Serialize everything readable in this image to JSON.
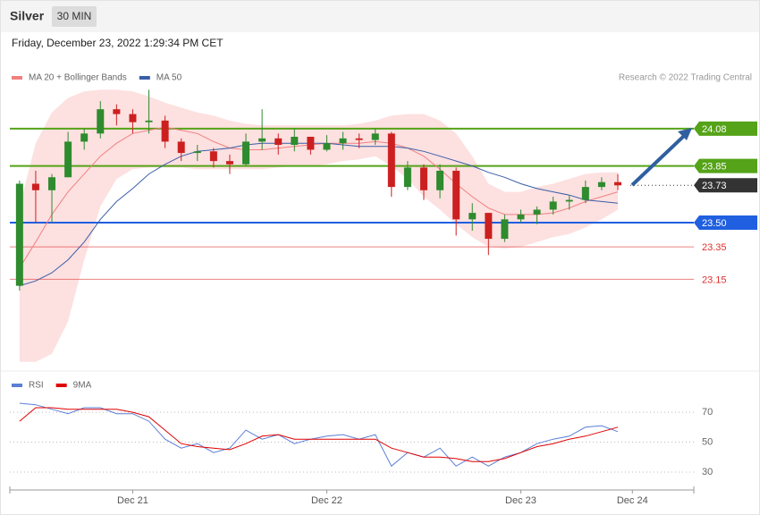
{
  "header": {
    "title": "Silver",
    "timeframe": "30 MIN",
    "date": "Friday, December 23, 2022 1:29:34 PM CET"
  },
  "credit": "Research © 2022 Trading Central",
  "chart_data": [
    {
      "type": "candlestick",
      "x": [
        5,
        6,
        7,
        8,
        9,
        10,
        11,
        12,
        13,
        14,
        15,
        16,
        17,
        18,
        19,
        20,
        21,
        22,
        23,
        24,
        25,
        26,
        27,
        28,
        29,
        30,
        31,
        32,
        33,
        34,
        35,
        36,
        37,
        38,
        39,
        40,
        41,
        42
      ],
      "open": [
        23.11,
        23.74,
        23.7,
        23.78,
        24.0,
        24.05,
        24.2,
        24.17,
        24.12,
        24.13,
        24.0,
        23.93,
        23.94,
        23.88,
        23.86,
        24.0,
        24.02,
        23.98,
        24.03,
        23.95,
        23.99,
        24.02,
        24.01,
        24.05,
        23.72,
        23.84,
        23.7,
        23.82,
        23.52,
        23.56,
        23.4,
        23.52,
        23.55,
        23.58,
        23.63,
        23.64,
        23.72,
        23.75
      ],
      "high": [
        23.76,
        23.82,
        23.8,
        24.06,
        24.08,
        24.25,
        24.23,
        24.2,
        24.32,
        24.16,
        24.02,
        23.98,
        23.96,
        23.92,
        24.05,
        24.2,
        24.05,
        24.08,
        24.03,
        24.04,
        24.06,
        24.05,
        24.08,
        24.06,
        23.88,
        23.86,
        23.86,
        23.84,
        23.62,
        23.56,
        23.55,
        23.58,
        23.6,
        23.66,
        23.67,
        23.76,
        23.78,
        23.8
      ],
      "low": [
        23.08,
        23.5,
        23.5,
        23.78,
        23.95,
        24.02,
        24.1,
        24.05,
        24.05,
        23.96,
        23.88,
        23.88,
        23.84,
        23.8,
        23.85,
        23.95,
        23.92,
        23.94,
        23.92,
        23.94,
        23.95,
        23.96,
        23.98,
        23.66,
        23.7,
        23.64,
        23.65,
        23.42,
        23.45,
        23.3,
        23.38,
        23.5,
        23.49,
        23.55,
        23.58,
        23.62,
        23.7,
        23.7
      ],
      "close": [
        23.74,
        23.7,
        23.78,
        24.0,
        24.05,
        24.2,
        24.17,
        24.12,
        24.13,
        24.0,
        23.93,
        23.94,
        23.88,
        23.86,
        24.0,
        24.02,
        23.98,
        24.03,
        23.95,
        23.99,
        24.02,
        24.01,
        24.05,
        23.72,
        23.84,
        23.7,
        23.82,
        23.52,
        23.56,
        23.4,
        23.52,
        23.55,
        23.58,
        23.63,
        23.64,
        23.72,
        23.75,
        23.73
      ],
      "up_color": "#2e8b2e",
      "down_color": "#cc2020",
      "series": [
        {
          "name": "MA 20 + Bollinger Bands",
          "color": "#f08080",
          "band_color": "#fde0e0",
          "values": [
            23.22,
            23.38,
            23.55,
            23.69,
            23.8,
            23.91,
            23.99,
            24.05,
            24.07,
            24.09,
            24.07,
            24.05,
            24.0,
            23.96,
            23.95,
            23.95,
            23.96,
            23.97,
            23.98,
            23.99,
            23.99,
            23.99,
            24.0,
            23.99,
            23.96,
            23.91,
            23.83,
            23.74,
            23.66,
            23.59,
            23.55,
            23.55,
            23.55,
            23.56,
            23.59,
            23.63,
            23.66,
            23.69
          ],
          "upper": [
            23.6,
            23.99,
            24.18,
            24.27,
            24.31,
            24.32,
            24.32,
            24.31,
            24.28,
            24.24,
            24.21,
            24.18,
            24.16,
            24.13,
            24.11,
            24.1,
            24.1,
            24.1,
            24.1,
            24.1,
            24.1,
            24.11,
            24.13,
            24.16,
            24.17,
            24.17,
            24.13,
            24.05,
            23.91,
            23.74,
            23.69,
            23.69,
            23.72,
            23.74,
            23.77,
            23.8,
            23.81,
            23.81
          ],
          "lower": [
            22.64,
            22.64,
            22.69,
            22.89,
            23.27,
            23.6,
            23.77,
            23.83,
            23.84,
            23.84,
            23.84,
            23.83,
            23.83,
            23.83,
            23.83,
            23.83,
            23.84,
            23.85,
            23.85,
            23.86,
            23.88,
            23.89,
            23.91,
            23.85,
            23.77,
            23.66,
            23.58,
            23.49,
            23.41,
            23.35,
            23.34,
            23.35,
            23.38,
            23.41,
            23.43,
            23.47,
            23.52,
            23.58
          ]
        },
        {
          "name": "MA 50",
          "color": "#3a5ea8",
          "values": [
            23.11,
            23.14,
            23.19,
            23.27,
            23.38,
            23.52,
            23.63,
            23.71,
            23.8,
            23.86,
            23.91,
            23.94,
            23.95,
            23.96,
            23.98,
            23.99,
            23.99,
            23.99,
            23.99,
            23.99,
            23.98,
            23.97,
            23.97,
            23.97,
            23.96,
            23.94,
            23.91,
            23.88,
            23.85,
            23.81,
            23.78,
            23.74,
            23.71,
            23.69,
            23.67,
            23.64,
            23.63,
            23.62
          ]
        }
      ],
      "levels": [
        {
          "value": 24.08,
          "color": "#55a318",
          "tag": true
        },
        {
          "value": 23.85,
          "color": "#55a318",
          "tag": true
        },
        {
          "value": 23.73,
          "color": "#333333",
          "tag": true,
          "dotted": true
        },
        {
          "value": 23.5,
          "label": "23.50",
          "color": "#1f5fe0",
          "tag": true
        },
        {
          "value": 23.35,
          "color": "#e03030",
          "tag": false
        },
        {
          "value": 23.15,
          "color": "#e03030",
          "tag": false
        }
      ],
      "xlim": [
        4.4,
        46.7
      ],
      "ylim": [
        22.6,
        24.35
      ]
    },
    {
      "type": "line",
      "x": [
        5,
        6,
        7,
        8,
        9,
        10,
        11,
        12,
        13,
        14,
        15,
        16,
        17,
        18,
        19,
        20,
        21,
        22,
        23,
        24,
        25,
        26,
        27,
        28,
        29,
        30,
        31,
        32,
        33,
        34,
        35,
        36,
        37,
        38,
        39,
        40,
        41,
        42
      ],
      "series": [
        {
          "name": "RSI",
          "color": "#5b7fd6",
          "values": [
            76,
            75,
            72,
            69,
            73,
            73,
            69,
            69,
            64,
            52,
            46,
            49,
            43,
            46,
            58,
            52,
            55,
            49,
            52,
            54,
            55,
            52,
            55,
            34,
            43,
            40,
            46,
            34,
            40,
            34,
            40,
            43,
            49,
            52,
            54,
            60,
            61,
            57
          ]
        },
        {
          "name": "9MA",
          "color": "#e00000",
          "values": [
            64,
            73,
            73,
            72,
            72,
            72,
            72,
            70,
            67,
            58,
            49,
            47,
            46,
            45,
            49,
            54,
            55,
            52,
            52,
            52,
            52,
            52,
            52,
            46,
            43,
            40,
            40,
            39,
            37,
            37,
            39,
            43,
            47,
            49,
            52,
            54,
            57,
            60
          ]
        }
      ],
      "xlim": [
        4.4,
        46.7
      ],
      "ylim": [
        18,
        82
      ],
      "yticks": [
        30,
        50,
        70
      ],
      "xticks": [
        {
          "value": 12,
          "label": "Dec 21"
        },
        {
          "value": 24,
          "label": "Dec 22"
        },
        {
          "value": 36,
          "label": "Dec 23"
        },
        {
          "value": 42.9,
          "label": "Dec 24"
        }
      ],
      "grid": true
    }
  ]
}
